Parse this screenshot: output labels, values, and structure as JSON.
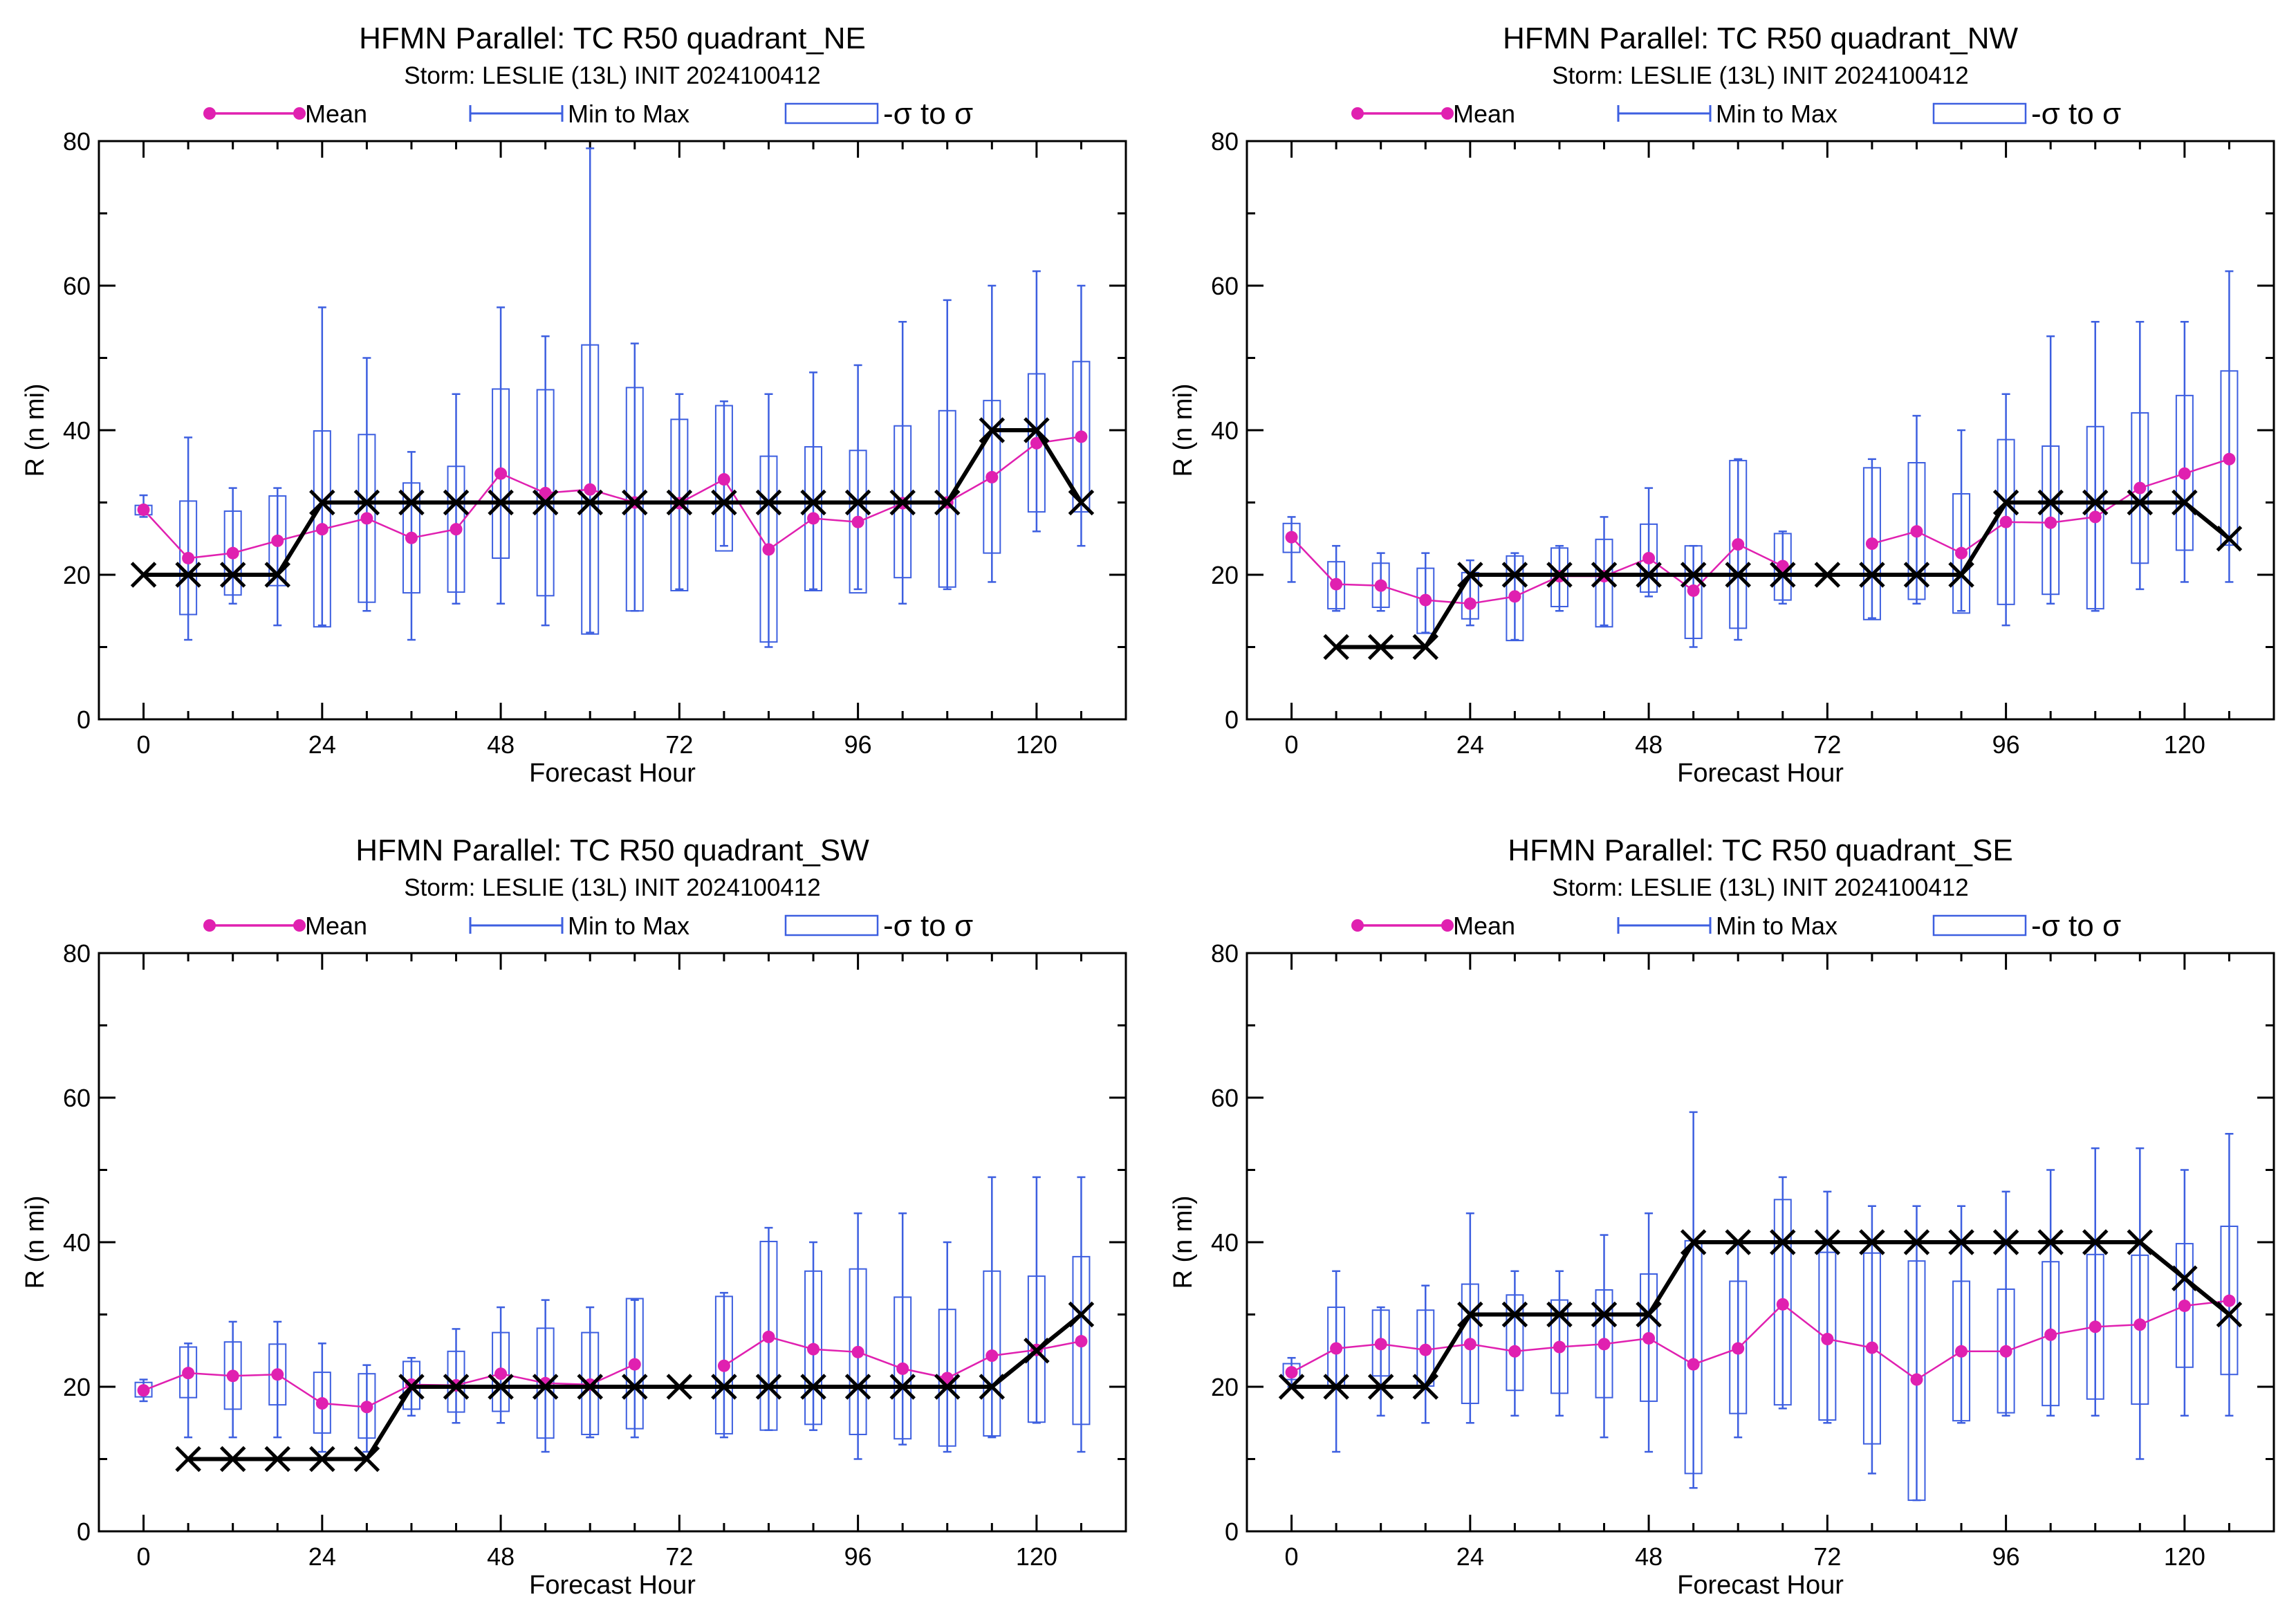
{
  "figure": {
    "legend": {
      "mean_label": "Mean",
      "minmax_label": "Min to Max",
      "sigma_label": "-σ to σ"
    },
    "x_ticks": [
      "0",
      "24",
      "48",
      "72",
      "96",
      "120"
    ],
    "y_ticks": [
      "0",
      "20",
      "40",
      "60",
      "80"
    ],
    "colors": {
      "mean": "#e020b0",
      "box": "#3d5fe0",
      "best_track": "#000000",
      "axes": "#000000"
    }
  },
  "chart_data": [
    {
      "type": "box",
      "title": "HFMN Parallel: TC  R50 quadrant_NE",
      "subtitle": "Storm: LESLIE (13L) INIT 2024100412",
      "xlabel": "Forecast Hour",
      "ylabel": "R (n mi)",
      "xlim": [
        -6,
        132
      ],
      "ylim": [
        0,
        80
      ],
      "x": [
        0,
        6,
        12,
        18,
        24,
        30,
        36,
        42,
        48,
        54,
        60,
        66,
        72,
        78,
        84,
        90,
        96,
        102,
        108,
        114,
        120,
        126
      ],
      "mean": [
        29,
        22.3,
        23,
        24.7,
        26.3,
        27.8,
        25.1,
        26.3,
        34,
        31.3,
        31.8,
        30,
        29.9,
        33.2,
        23.5,
        27.8,
        27.3,
        29.9,
        30,
        33.5,
        38.2,
        39.1
      ],
      "min": [
        28,
        11,
        16,
        13,
        13,
        15,
        11,
        16,
        16,
        13,
        12,
        15,
        18,
        24,
        10,
        18,
        18,
        16,
        18,
        19,
        26,
        24
      ],
      "max": [
        31,
        39,
        32,
        32,
        57,
        50,
        37,
        45,
        57,
        53,
        79,
        52,
        45,
        44,
        45,
        48,
        49,
        55,
        58,
        60,
        62,
        60
      ],
      "sigma_low": [
        28.3,
        14.5,
        17.2,
        18.5,
        12.8,
        16.2,
        17.5,
        17.6,
        22.3,
        17.1,
        11.8,
        15,
        17.8,
        23.3,
        10.7,
        17.8,
        17.5,
        19.6,
        18.3,
        23,
        28.7,
        28.7
      ],
      "sigma_high": [
        29.6,
        30.2,
        28.8,
        30.9,
        39.9,
        39.4,
        32.7,
        35,
        45.7,
        45.6,
        51.8,
        45.9,
        41.5,
        43.4,
        36.4,
        37.7,
        37.2,
        40.6,
        42.7,
        44.1,
        47.8,
        49.5
      ],
      "best_track": [
        20,
        20,
        20,
        20,
        30,
        30,
        30,
        30,
        30,
        30,
        30,
        30,
        30,
        30,
        30,
        30,
        30,
        30,
        30,
        40,
        40,
        30
      ]
    },
    {
      "type": "box",
      "title": "HFMN Parallel: TC  R50 quadrant_NW",
      "subtitle": "Storm: LESLIE (13L) INIT 2024100412",
      "xlabel": "Forecast Hour",
      "ylabel": "R (n mi)",
      "xlim": [
        -6,
        132
      ],
      "ylim": [
        0,
        80
      ],
      "x": [
        0,
        6,
        12,
        18,
        24,
        30,
        36,
        42,
        48,
        54,
        60,
        66,
        72,
        78,
        84,
        90,
        96,
        102,
        108,
        114,
        120,
        126
      ],
      "mean": [
        25.2,
        18.7,
        18.5,
        16.5,
        16,
        17,
        19.8,
        19.8,
        22.3,
        17.8,
        24.2,
        21.2,
        null,
        24.3,
        26,
        23,
        27.3,
        27.2,
        28,
        32,
        34,
        36
      ],
      "min": [
        19,
        15,
        15,
        12,
        13,
        11,
        15,
        13,
        17,
        10,
        11,
        16,
        null,
        14,
        16,
        15,
        13,
        16,
        15,
        18,
        19,
        19
      ],
      "max": [
        28,
        24,
        23,
        23,
        22,
        23,
        24,
        28,
        32,
        24,
        36,
        26,
        null,
        36,
        42,
        40,
        45,
        53,
        55,
        55,
        55,
        62
      ],
      "sigma_low": [
        23.1,
        15.3,
        15.5,
        11.9,
        13.9,
        10.9,
        15.6,
        12.8,
        17.6,
        11.2,
        12.6,
        16.5,
        null,
        13.8,
        16.6,
        14.7,
        15.9,
        17.3,
        15.3,
        21.6,
        23.4,
        24.1
      ],
      "sigma_high": [
        27.1,
        21.8,
        21.6,
        20.9,
        20.3,
        22.6,
        23.7,
        24.9,
        27,
        24,
        35.8,
        25.7,
        null,
        34.8,
        35.5,
        31.2,
        38.7,
        37.8,
        40.5,
        42.4,
        44.8,
        48.2
      ],
      "best_track": [
        null,
        10,
        10,
        10,
        20,
        20,
        20,
        20,
        20,
        20,
        20,
        20,
        20,
        20,
        20,
        20,
        30,
        30,
        30,
        30,
        30,
        25
      ]
    },
    {
      "type": "box",
      "title": "HFMN Parallel: TC  R50 quadrant_SW",
      "subtitle": "Storm: LESLIE (13L) INIT 2024100412",
      "xlabel": "Forecast Hour",
      "ylabel": "R (n mi)",
      "xlim": [
        -6,
        132
      ],
      "ylim": [
        0,
        80
      ],
      "x": [
        0,
        6,
        12,
        18,
        24,
        30,
        36,
        42,
        48,
        54,
        60,
        66,
        72,
        78,
        84,
        90,
        96,
        102,
        108,
        114,
        120,
        126
      ],
      "mean": [
        19.5,
        21.9,
        21.5,
        21.7,
        17.7,
        17.2,
        20.3,
        20.2,
        21.8,
        20.5,
        20.3,
        23.1,
        null,
        22.9,
        26.9,
        25.2,
        24.8,
        22.5,
        21.2,
        24.3,
        25.1,
        26.3
      ],
      "min": [
        18,
        13,
        13,
        13,
        11,
        11,
        16,
        15,
        15,
        11,
        13,
        13,
        null,
        13,
        14,
        14,
        10,
        12,
        11,
        13,
        15,
        11
      ],
      "max": [
        21,
        26,
        29,
        29,
        26,
        23,
        24,
        28,
        31,
        32,
        31,
        32,
        null,
        33,
        42,
        40,
        44,
        44,
        40,
        49,
        49,
        49
      ],
      "sigma_low": [
        18.6,
        18.5,
        16.9,
        17.5,
        13.6,
        12.9,
        16.9,
        16.5,
        16.6,
        12.9,
        13.4,
        14.2,
        null,
        13.5,
        14,
        14.8,
        13.4,
        12.8,
        11.8,
        13.2,
        15.1,
        14.8
      ],
      "sigma_high": [
        20.6,
        25.5,
        26.2,
        25.9,
        22,
        21.8,
        23.5,
        24.9,
        27.5,
        28.1,
        27.5,
        32.2,
        null,
        32.5,
        40.1,
        36,
        36.3,
        32.4,
        30.7,
        36,
        35.3,
        38
      ],
      "best_track": [
        null,
        10,
        10,
        10,
        10,
        10,
        20,
        20,
        20,
        20,
        20,
        20,
        20,
        20,
        20,
        20,
        20,
        20,
        20,
        20,
        25,
        30
      ]
    },
    {
      "type": "box",
      "title": "HFMN Parallel: TC  R50 quadrant_SE",
      "subtitle": "Storm: LESLIE (13L) INIT 2024100412",
      "xlabel": "Forecast Hour",
      "ylabel": "R (n mi)",
      "xlim": [
        -6,
        132
      ],
      "ylim": [
        0,
        80
      ],
      "x": [
        0,
        6,
        12,
        18,
        24,
        30,
        36,
        42,
        48,
        54,
        60,
        66,
        72,
        78,
        84,
        90,
        96,
        102,
        108,
        114,
        120,
        126
      ],
      "mean": [
        22,
        25.3,
        25.9,
        25.1,
        25.9,
        24.9,
        25.5,
        25.9,
        26.7,
        23.1,
        25.3,
        31.4,
        26.6,
        25.4,
        21,
        24.9,
        24.9,
        27.2,
        28.3,
        28.6,
        31.2,
        31.9
      ],
      "min": [
        20,
        11,
        16,
        15,
        15,
        16,
        16,
        13,
        11,
        6,
        13,
        17,
        15,
        8,
        4.3,
        15,
        16,
        16,
        16,
        10,
        16,
        16
      ],
      "max": [
        24,
        36,
        31,
        34,
        44,
        36,
        36,
        41,
        44,
        58,
        40,
        49,
        47,
        45,
        45,
        45,
        47,
        50,
        53,
        53,
        50,
        55
      ],
      "sigma_low": [
        21,
        19.9,
        21.5,
        20.1,
        17.7,
        19.5,
        19.1,
        18.5,
        18,
        8,
        16.3,
        17.5,
        15.4,
        12.1,
        4.3,
        15.3,
        16.4,
        17.4,
        18.3,
        17.6,
        22.7,
        21.7
      ],
      "sigma_high": [
        23.2,
        31,
        30.6,
        30.6,
        34.2,
        32.7,
        32,
        33.4,
        35.6,
        40.2,
        34.6,
        45.9,
        38.6,
        38.5,
        37.4,
        34.6,
        33.5,
        37.3,
        38.3,
        38.2,
        39.8,
        42.2
      ],
      "best_track": [
        20,
        20,
        20,
        20,
        30,
        30,
        30,
        30,
        30,
        40,
        40,
        40,
        40,
        40,
        40,
        40,
        40,
        40,
        40,
        40,
        35,
        30
      ]
    }
  ]
}
